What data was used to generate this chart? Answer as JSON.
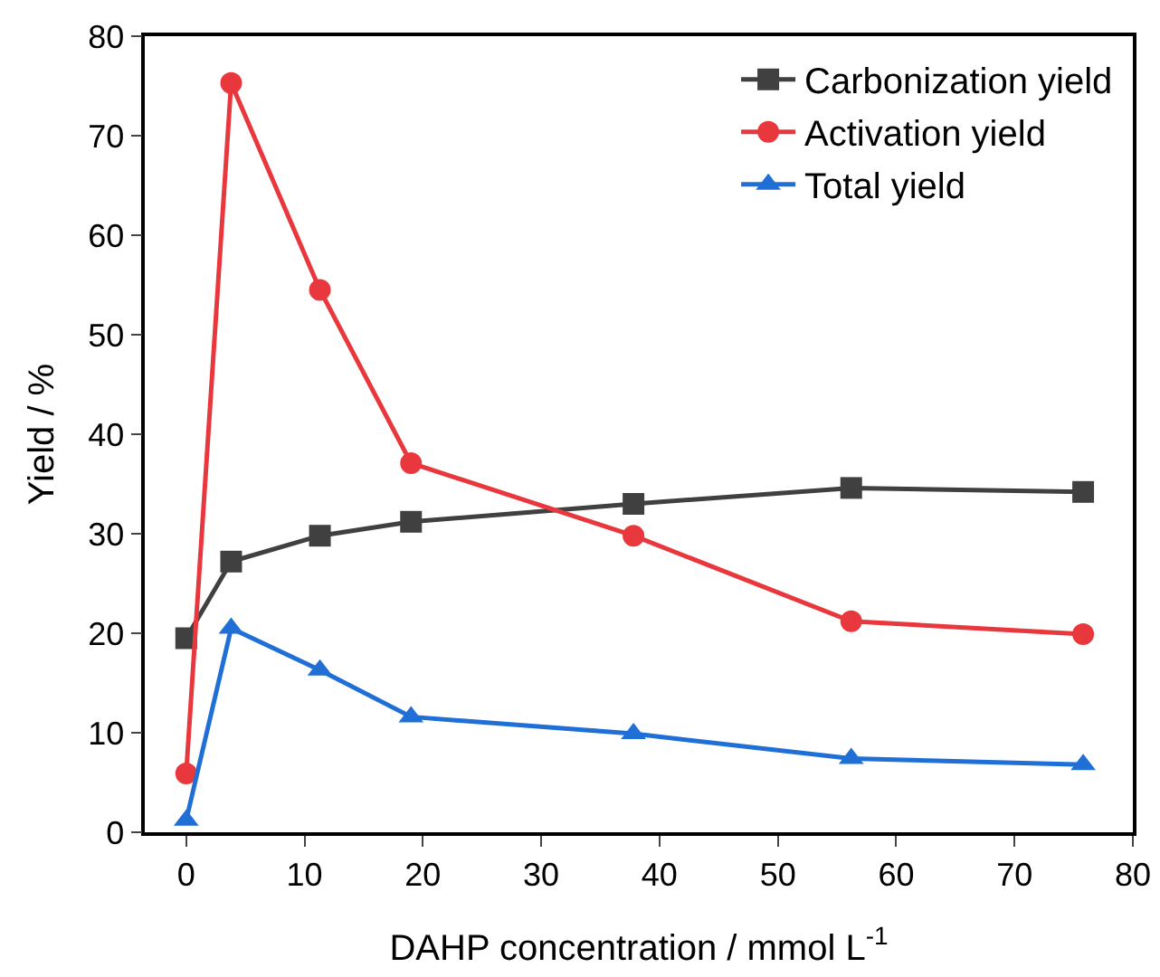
{
  "chart_data": {
    "type": "line",
    "xlabel": "DAHP concentration / mmol L$^{-1}$",
    "ylabel": "Yield / %",
    "xlim": [
      -3.5,
      80
    ],
    "xticks": [
      0,
      10,
      20,
      30,
      40,
      50,
      60,
      70,
      80
    ],
    "ylim": [
      0,
      80
    ],
    "yticks": [
      0,
      10,
      20,
      30,
      40,
      50,
      60,
      70,
      80
    ],
    "grid": false,
    "legend": "top right",
    "line_style": "solid",
    "x": [
      0,
      3.8,
      11.3,
      19,
      37.8,
      56.2,
      75.8
    ],
    "series": [
      {
        "name": "Carbonization yield",
        "color": "#404040",
        "marker": "square",
        "values": [
          19.5,
          27.2,
          29.8,
          31.2,
          33.0,
          34.6,
          34.2
        ]
      },
      {
        "name": "Activation yield",
        "color": "#e8383d",
        "marker": "circle",
        "values": [
          5.9,
          75.3,
          54.5,
          37.1,
          29.8,
          21.2,
          19.9
        ]
      },
      {
        "name": "Total yield",
        "color": "#1f6fd6",
        "marker": "triangle",
        "values": [
          1.2,
          20.5,
          16.3,
          11.6,
          9.9,
          7.4,
          6.8
        ]
      }
    ]
  }
}
